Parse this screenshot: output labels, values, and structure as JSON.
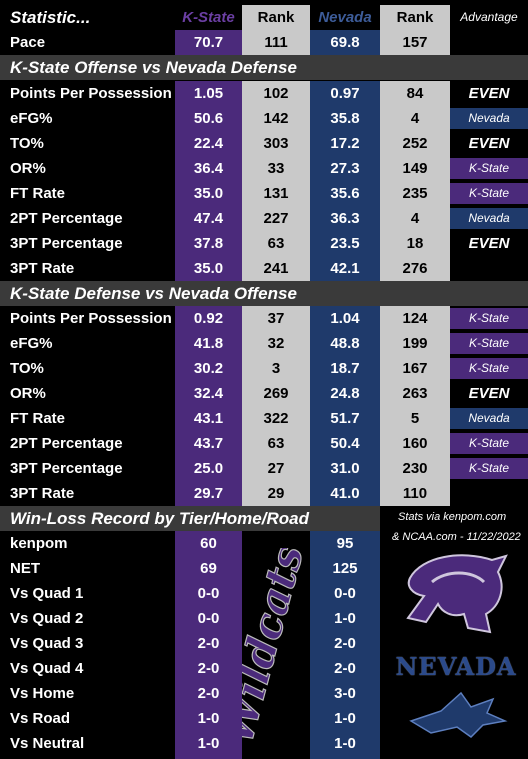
{
  "header": {
    "stat": "Statistic...",
    "kstate": "K-State",
    "rank1": "Rank",
    "nevada": "Nevada",
    "rank2": "Rank",
    "advantage": "Advantage"
  },
  "pace": {
    "label": "Pace",
    "ks": "70.7",
    "kr": "111",
    "nv": "69.8",
    "nr": "157",
    "adv": ""
  },
  "section1": "K-State Offense vs Nevada Defense",
  "offense": [
    {
      "label": "Points Per Possession",
      "ks": "1.05",
      "kr": "102",
      "nv": "0.97",
      "nr": "84",
      "adv": "EVEN",
      "type": "even"
    },
    {
      "label": "eFG%",
      "ks": "50.6",
      "kr": "142",
      "nv": "35.8",
      "nr": "4",
      "adv": "Nevada",
      "type": "nevada"
    },
    {
      "label": "TO%",
      "ks": "22.4",
      "kr": "303",
      "nv": "17.2",
      "nr": "252",
      "adv": "EVEN",
      "type": "even"
    },
    {
      "label": "OR%",
      "ks": "36.4",
      "kr": "33",
      "nv": "27.3",
      "nr": "149",
      "adv": "K-State",
      "type": "kstate"
    },
    {
      "label": "FT Rate",
      "ks": "35.0",
      "kr": "131",
      "nv": "35.6",
      "nr": "235",
      "adv": "K-State",
      "type": "kstate"
    },
    {
      "label": "2PT Percentage",
      "ks": "47.4",
      "kr": "227",
      "nv": "36.3",
      "nr": "4",
      "adv": "Nevada",
      "type": "nevada"
    },
    {
      "label": "3PT Percentage",
      "ks": "37.8",
      "kr": "63",
      "nv": "23.5",
      "nr": "18",
      "adv": "EVEN",
      "type": "even"
    },
    {
      "label": "3PT Rate",
      "ks": "35.0",
      "kr": "241",
      "nv": "42.1",
      "nr": "276",
      "adv": "",
      "type": "none"
    }
  ],
  "section2": "K-State Defense vs Nevada Offense",
  "defense": [
    {
      "label": "Points Per Possession",
      "ks": "0.92",
      "kr": "37",
      "nv": "1.04",
      "nr": "124",
      "adv": "K-State",
      "type": "kstate"
    },
    {
      "label": "eFG%",
      "ks": "41.8",
      "kr": "32",
      "nv": "48.8",
      "nr": "199",
      "adv": "K-State",
      "type": "kstate"
    },
    {
      "label": "TO%",
      "ks": "30.2",
      "kr": "3",
      "nv": "18.7",
      "nr": "167",
      "adv": "K-State",
      "type": "kstate"
    },
    {
      "label": "OR%",
      "ks": "32.4",
      "kr": "269",
      "nv": "24.8",
      "nr": "263",
      "adv": "EVEN",
      "type": "even"
    },
    {
      "label": "FT Rate",
      "ks": "43.1",
      "kr": "322",
      "nv": "51.7",
      "nr": "5",
      "adv": "Nevada",
      "type": "nevada"
    },
    {
      "label": "2PT Percentage",
      "ks": "43.7",
      "kr": "63",
      "nv": "50.4",
      "nr": "160",
      "adv": "K-State",
      "type": "kstate"
    },
    {
      "label": "3PT Percentage",
      "ks": "25.0",
      "kr": "27",
      "nv": "31.0",
      "nr": "230",
      "adv": "K-State",
      "type": "kstate"
    },
    {
      "label": "3PT Rate",
      "ks": "29.7",
      "kr": "29",
      "nv": "41.0",
      "nr": "110",
      "adv": "",
      "type": "none"
    }
  ],
  "section3": "Win-Loss Record by Tier/Home/Road",
  "credit1": "Stats via kenpom.com",
  "credit2": "& NCAA.com - 11/22/2022",
  "watermark": "Wildcats",
  "nevada_logo_text": "NEVADA",
  "records": [
    {
      "label": "kenpom",
      "ks": "60",
      "nv": "95"
    },
    {
      "label": "NET",
      "ks": "69",
      "nv": "125"
    },
    {
      "label": "Vs Quad 1",
      "ks": "0-0",
      "nv": "0-0"
    },
    {
      "label": "Vs Quad 2",
      "ks": "0-0",
      "nv": "1-0"
    },
    {
      "label": "Vs Quad 3",
      "ks": "2-0",
      "nv": "2-0"
    },
    {
      "label": "Vs Quad 4",
      "ks": "2-0",
      "nv": "2-0"
    },
    {
      "label": "Vs Home",
      "ks": "2-0",
      "nv": "3-0"
    },
    {
      "label": "Vs Road",
      "ks": "1-0",
      "nv": "1-0"
    },
    {
      "label": "Vs Neutral",
      "ks": "1-0",
      "nv": "1-0"
    }
  ],
  "colors": {
    "kstate": "#4b2a7b",
    "nevada": "#1f3a6b",
    "rank": "#c9c9c9",
    "section": "#3a3a3a"
  }
}
